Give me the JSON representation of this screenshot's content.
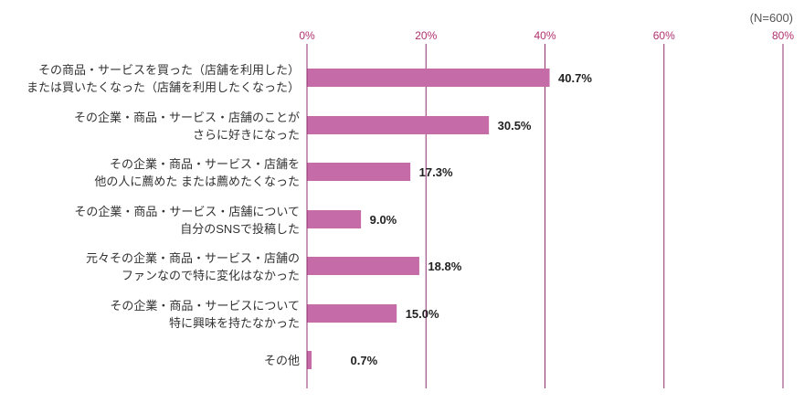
{
  "chart_data": {
    "type": "bar",
    "orientation": "horizontal",
    "note": "(N=600)",
    "categories": [
      [
        "その商品・サービスを買った（店舗を利用した）",
        "または買いたくなった（店舗を利用したくなった）"
      ],
      [
        "その企業・商品・サービス・店舗のことが",
        "さらに好きになった"
      ],
      [
        "その企業・商品・サービス・店舗を",
        "他の人に薦めた または薦めたくなった"
      ],
      [
        "その企業・商品・サービス・店舗について",
        "自分のSNSで投稿した"
      ],
      [
        "元々その企業・商品・サービス・店舗の",
        "ファンなので特に変化はなかった"
      ],
      [
        "その企業・商品・サービスについて",
        "特に興味を持たなかった"
      ],
      [
        "その他"
      ]
    ],
    "values": [
      40.7,
      30.5,
      17.3,
      9.0,
      18.8,
      15.0,
      0.7
    ],
    "value_labels": [
      "40.7%",
      "30.5%",
      "17.3%",
      "9.0%",
      "18.8%",
      "15.0%",
      "0.7%"
    ],
    "xlim": [
      0,
      80
    ],
    "xticks": [
      0,
      20,
      40,
      60,
      80
    ],
    "xtick_labels": [
      "0%",
      "20%",
      "40%",
      "60%",
      "80%"
    ],
    "x_axis_position": "top",
    "grid": true,
    "colors": {
      "bar": "#C56BA8",
      "grid": "#8E2F6E",
      "tick_label": "#B0306E"
    }
  }
}
